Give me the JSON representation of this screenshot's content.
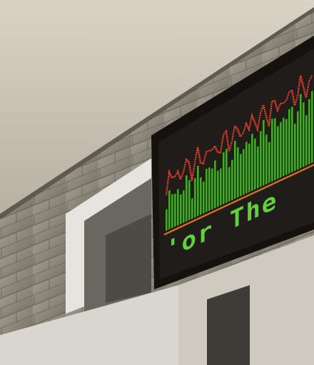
{
  "sign": {
    "text": "'or The"
  }
}
